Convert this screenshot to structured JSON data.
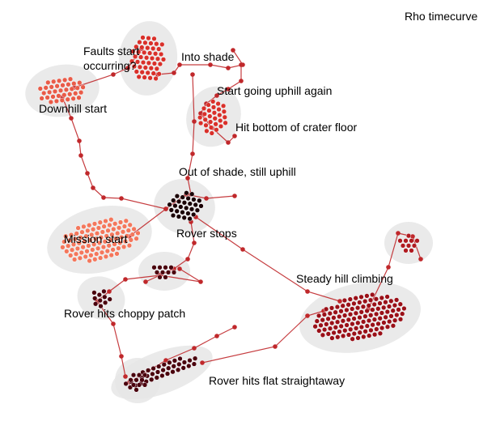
{
  "chart_data": {
    "type": "scatter",
    "title": "Rho timecurve",
    "colors": {
      "halo": "#e6e6e6",
      "path": "#c0282b",
      "early": "#f4775c",
      "mid": "#d9302a",
      "late": "#4a000d"
    },
    "annotations": [
      {
        "label": "Faults start",
        "text_line2": "occurring?"
      },
      {
        "label": "Into shade"
      },
      {
        "label": "Downhill start"
      },
      {
        "label": "Start going uphill again"
      },
      {
        "label": "Hit bottom of crater floor"
      },
      {
        "label": "Out of shade, still uphill"
      },
      {
        "label": "Mission start"
      },
      {
        "label": "Rover stops"
      },
      {
        "label": "Steady hill climbing"
      },
      {
        "label": "Rover hits choppy patch"
      },
      {
        "label": "Rover hits flat straightaway"
      }
    ]
  }
}
